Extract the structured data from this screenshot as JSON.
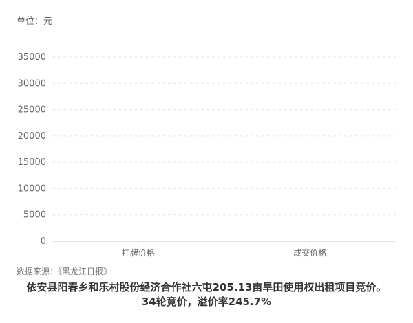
{
  "unit_label": "单位：元",
  "source": "数据来源：《黑龙江日报》",
  "caption": {
    "line1": "依安县阳春乡和乐村股份经济合作社六屯205.13亩旱田使用权出租项目竞价。",
    "line2": "34轮竞价，溢价率245.7%"
  },
  "chart_data": {
    "type": "bar",
    "categories": [
      "挂牌价格",
      "成交价格"
    ],
    "values": [
      0,
      0
    ],
    "ylim": [
      0,
      35000
    ],
    "yticks": [
      "0",
      "5000",
      "10000",
      "15000",
      "20000",
      "25000",
      "30000",
      "35000"
    ],
    "grid": true,
    "colors": {
      "bar": "#c9d6d3",
      "axis": "#cccccc",
      "grid": "#e6e6e6",
      "tick_text": "#666666"
    }
  }
}
